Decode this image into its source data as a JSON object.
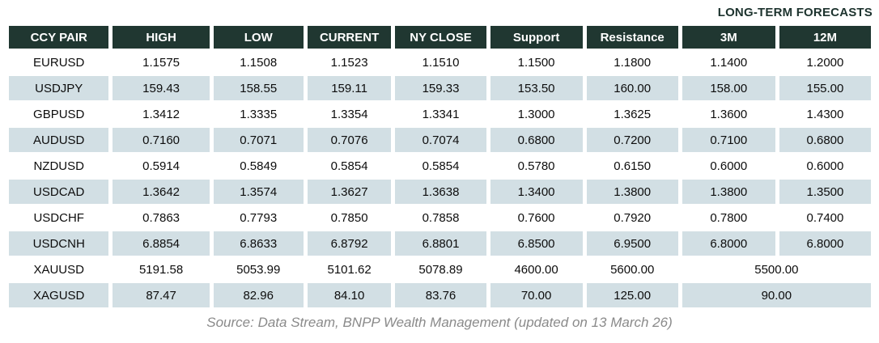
{
  "header": {
    "long_term_label": "LONG-TERM FORECASTS"
  },
  "chart_data": {
    "type": "table",
    "title": "LONG-TERM FORECASTS",
    "columns": [
      "CCY PAIR",
      "HIGH",
      "LOW",
      "CURRENT",
      "NY CLOSE",
      "Support",
      "Resistance",
      "3M",
      "12M"
    ],
    "rows": [
      {
        "pair": "EURUSD",
        "values": [
          "1.1575",
          "1.1508",
          "1.1523",
          "1.1510",
          "1.1500",
          "1.1800"
        ],
        "forecasts": [
          "1.1400",
          "1.2000"
        ]
      },
      {
        "pair": "USDJPY",
        "values": [
          "159.43",
          "158.55",
          "159.11",
          "159.33",
          "153.50",
          "160.00"
        ],
        "forecasts": [
          "158.00",
          "155.00"
        ]
      },
      {
        "pair": "GBPUSD",
        "values": [
          "1.3412",
          "1.3335",
          "1.3354",
          "1.3341",
          "1.3000",
          "1.3625"
        ],
        "forecasts": [
          "1.3600",
          "1.4300"
        ]
      },
      {
        "pair": "AUDUSD",
        "values": [
          "0.7160",
          "0.7071",
          "0.7076",
          "0.7074",
          "0.6800",
          "0.7200"
        ],
        "forecasts": [
          "0.7100",
          "0.6800"
        ]
      },
      {
        "pair": "NZDUSD",
        "values": [
          "0.5914",
          "0.5849",
          "0.5854",
          "0.5854",
          "0.5780",
          "0.6150"
        ],
        "forecasts": [
          "0.6000",
          "0.6000"
        ]
      },
      {
        "pair": "USDCAD",
        "values": [
          "1.3642",
          "1.3574",
          "1.3627",
          "1.3638",
          "1.3400",
          "1.3800"
        ],
        "forecasts": [
          "1.3800",
          "1.3500"
        ]
      },
      {
        "pair": "USDCHF",
        "values": [
          "0.7863",
          "0.7793",
          "0.7850",
          "0.7858",
          "0.7600",
          "0.7920"
        ],
        "forecasts": [
          "0.7800",
          "0.7400"
        ]
      },
      {
        "pair": "USDCNH",
        "values": [
          "6.8854",
          "6.8633",
          "6.8792",
          "6.8801",
          "6.8500",
          "6.9500"
        ],
        "forecasts": [
          "6.8000",
          "6.8000"
        ]
      },
      {
        "pair": "XAUUSD",
        "values": [
          "5191.58",
          "5053.99",
          "5101.62",
          "5078.89",
          "4600.00",
          "5600.00"
        ],
        "forecasts": [
          "5500.00"
        ]
      },
      {
        "pair": "XAGUSD",
        "values": [
          "87.47",
          "82.96",
          "84.10",
          "83.76",
          "70.00",
          "125.00"
        ],
        "forecasts": [
          "90.00"
        ]
      }
    ]
  },
  "footer": {
    "source": "Source: Data Stream, BNPP Wealth Management (updated on 13 March 26)"
  },
  "colors": {
    "header_bg": "#203731",
    "header_text": "#ffffff",
    "alt_row_bg": "#d2dfe4",
    "body_text": "#0d0d0d",
    "label_text": "#1d332e",
    "source_text": "#8a8a8a"
  }
}
